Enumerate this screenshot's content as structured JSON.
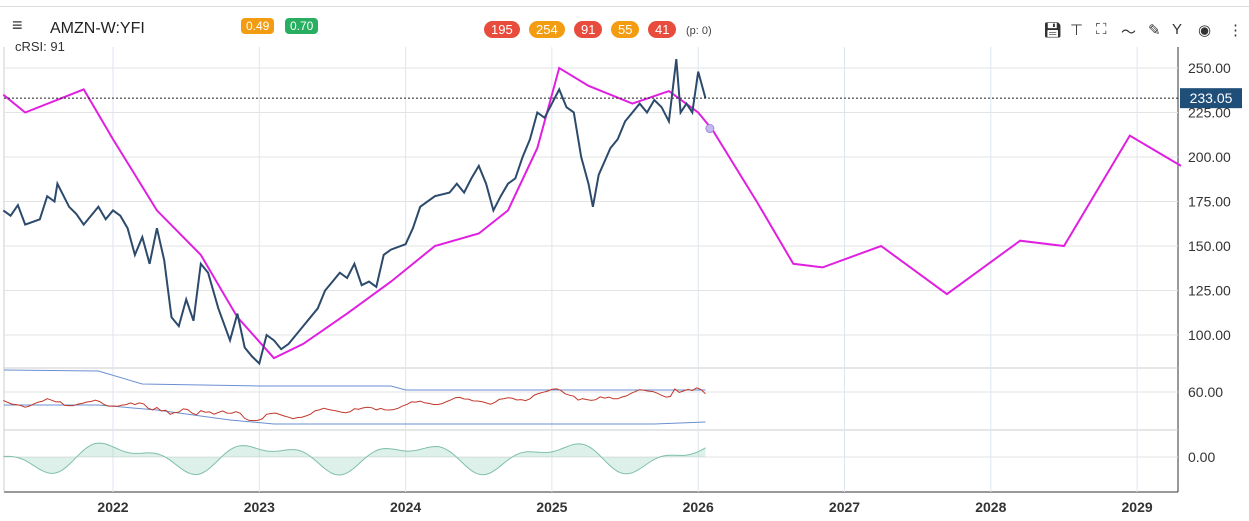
{
  "header": {
    "symbol": "AMZN-W:YFI",
    "crsi_label": "cRSI: 91",
    "badges": [
      {
        "value": "0.49",
        "color": "#f39c12"
      },
      {
        "value": "0.70",
        "color": "#27ae60"
      }
    ],
    "pills": [
      {
        "value": "195",
        "color": "#e74c3c"
      },
      {
        "value": "254",
        "color": "#f39c12"
      },
      {
        "value": "91",
        "color": "#e74c3c"
      },
      {
        "value": "55",
        "color": "#f39c12"
      },
      {
        "value": "41",
        "color": "#e74c3c"
      }
    ],
    "p_label": "(p: 0)"
  },
  "toolbar": [
    "save-icon",
    "pin-icon",
    "fullscreen-icon",
    "trend-icon",
    "draw-icon",
    "fork-icon",
    "eye-icon",
    "more-icon"
  ],
  "chart_data": {
    "type": "line",
    "title": "AMZN-W:YFI",
    "x_ticks": [
      "2022",
      "2023",
      "2024",
      "2025",
      "2026",
      "2027",
      "2028",
      "2029"
    ],
    "y_ticks": [
      "250.00",
      "225.00",
      "200.00",
      "175.00",
      "150.00",
      "125.00",
      "100.00"
    ],
    "ylim": [
      88,
      262
    ],
    "xlim": [
      2021.25,
      2029.3
    ],
    "last_price": "233.05",
    "price": [
      [
        2021.25,
        170
      ],
      [
        2021.3,
        167
      ],
      [
        2021.35,
        173
      ],
      [
        2021.4,
        162
      ],
      [
        2021.5,
        165
      ],
      [
        2021.55,
        178
      ],
      [
        2021.6,
        175
      ],
      [
        2021.62,
        185
      ],
      [
        2021.7,
        172
      ],
      [
        2021.75,
        168
      ],
      [
        2021.8,
        162
      ],
      [
        2021.9,
        172
      ],
      [
        2021.95,
        165
      ],
      [
        2022.0,
        170
      ],
      [
        2022.05,
        167
      ],
      [
        2022.1,
        160
      ],
      [
        2022.15,
        145
      ],
      [
        2022.2,
        155
      ],
      [
        2022.25,
        140
      ],
      [
        2022.3,
        160
      ],
      [
        2022.35,
        142
      ],
      [
        2022.4,
        110
      ],
      [
        2022.45,
        105
      ],
      [
        2022.5,
        120
      ],
      [
        2022.55,
        108
      ],
      [
        2022.6,
        140
      ],
      [
        2022.65,
        135
      ],
      [
        2022.72,
        115
      ],
      [
        2022.8,
        97
      ],
      [
        2022.85,
        112
      ],
      [
        2022.9,
        93
      ],
      [
        2022.95,
        88
      ],
      [
        2023.0,
        84
      ],
      [
        2023.05,
        100
      ],
      [
        2023.1,
        97
      ],
      [
        2023.15,
        92
      ],
      [
        2023.2,
        95
      ],
      [
        2023.3,
        105
      ],
      [
        2023.4,
        115
      ],
      [
        2023.45,
        125
      ],
      [
        2023.5,
        130
      ],
      [
        2023.55,
        135
      ],
      [
        2023.6,
        132
      ],
      [
        2023.65,
        140
      ],
      [
        2023.7,
        128
      ],
      [
        2023.75,
        130
      ],
      [
        2023.8,
        127
      ],
      [
        2023.85,
        145
      ],
      [
        2023.9,
        148
      ],
      [
        2024.0,
        151
      ],
      [
        2024.05,
        160
      ],
      [
        2024.1,
        172
      ],
      [
        2024.2,
        178
      ],
      [
        2024.3,
        180
      ],
      [
        2024.35,
        185
      ],
      [
        2024.4,
        180
      ],
      [
        2024.45,
        188
      ],
      [
        2024.5,
        195
      ],
      [
        2024.55,
        185
      ],
      [
        2024.6,
        170
      ],
      [
        2024.65,
        178
      ],
      [
        2024.7,
        185
      ],
      [
        2024.75,
        188
      ],
      [
        2024.8,
        200
      ],
      [
        2024.85,
        210
      ],
      [
        2024.9,
        225
      ],
      [
        2024.95,
        222
      ],
      [
        2025.0,
        230
      ],
      [
        2025.05,
        238
      ],
      [
        2025.1,
        228
      ],
      [
        2025.15,
        225
      ],
      [
        2025.2,
        200
      ],
      [
        2025.25,
        185
      ],
      [
        2025.28,
        172
      ],
      [
        2025.32,
        190
      ],
      [
        2025.4,
        205
      ],
      [
        2025.45,
        210
      ],
      [
        2025.5,
        220
      ],
      [
        2025.55,
        225
      ],
      [
        2025.6,
        230
      ],
      [
        2025.65,
        225
      ],
      [
        2025.7,
        232
      ],
      [
        2025.75,
        228
      ],
      [
        2025.8,
        220
      ],
      [
        2025.85,
        255
      ],
      [
        2025.88,
        225
      ],
      [
        2025.92,
        230
      ],
      [
        2025.96,
        225
      ],
      [
        2026.0,
        248
      ],
      [
        2026.05,
        233
      ]
    ],
    "cycle": [
      [
        2021.25,
        235
      ],
      [
        2021.4,
        225
      ],
      [
        2021.8,
        238
      ],
      [
        2022.0,
        210
      ],
      [
        2022.3,
        170
      ],
      [
        2022.6,
        145
      ],
      [
        2022.85,
        110
      ],
      [
        2023.1,
        87
      ],
      [
        2023.3,
        95
      ],
      [
        2023.6,
        112
      ],
      [
        2023.9,
        130
      ],
      [
        2024.2,
        150
      ],
      [
        2024.5,
        157
      ],
      [
        2024.7,
        170
      ],
      [
        2024.9,
        205
      ],
      [
        2025.05,
        250
      ],
      [
        2025.25,
        240
      ],
      [
        2025.55,
        230
      ],
      [
        2025.8,
        237
      ],
      [
        2026.0,
        225
      ],
      [
        2026.1,
        215
      ],
      [
        2026.4,
        175
      ],
      [
        2026.65,
        140
      ],
      [
        2026.85,
        138
      ],
      [
        2027.25,
        150
      ],
      [
        2027.7,
        123
      ],
      [
        2028.2,
        153
      ],
      [
        2028.5,
        150
      ],
      [
        2028.95,
        212
      ],
      [
        2029.3,
        195
      ]
    ],
    "rsi_pane": {
      "tick": "60.00"
    },
    "osc_pane": {
      "tick": "0.00"
    }
  }
}
